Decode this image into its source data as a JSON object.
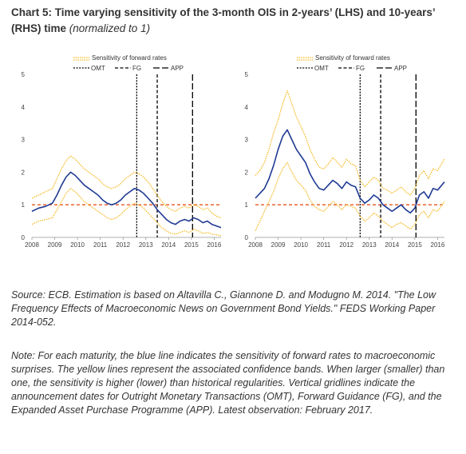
{
  "header": {
    "title_bold": "Chart 5: Time varying sensitivity of the 3-month OIS in 2-years’ (LHS) and 10-years’ (RHS) time",
    "title_italic": "(normalized to 1)"
  },
  "source_text": "Source: ECB. Estimation is based on Altavilla C., Giannone D. and Modugno M. 2014. \"The Low Frequency Effects of Macroeconomic News on Government Bond Yields.\" FEDS Working Paper 2014-052.",
  "note_text": "Note: For each maturity, the blue line indicates the sensitivity of forward rates to macroeconomic surprises. The yellow lines represent the associated confidence bands. When larger (smaller) than one, the sensitivity is higher (lower) than historical regularities. Vertical gridlines indicate the announcement dates for Outright Monetary Transactions (OMT), Forward Guidance (FG), and the Expanded Asset Purchase Programme (APP). Latest observation: February 2017.",
  "colors": {
    "sensitivity": "#1f3a93",
    "bands": "#f5b71a",
    "baseline": "#e8541c",
    "events": "#000000",
    "axis": "#999999"
  },
  "chart_data": [
    {
      "type": "line",
      "panel": "LHS",
      "legend": [
        "Sensitivity of forward rates",
        "OMT",
        "FG",
        "APP"
      ],
      "legend_placement": "top-center",
      "ylim": [
        0,
        5
      ],
      "yticks": [
        0,
        1,
        2,
        3,
        4,
        5
      ],
      "xlim": [
        2008,
        2016.3
      ],
      "xticks": [
        2008,
        2009,
        2010,
        2011,
        2012,
        2013,
        2014,
        2015,
        2016
      ],
      "grid": false,
      "baseline": 1,
      "events": [
        {
          "name": "OMT",
          "x": 2012.6,
          "style": "dotted"
        },
        {
          "name": "FG",
          "x": 2013.5,
          "style": "dashed"
        },
        {
          "name": "APP",
          "x": 2015.05,
          "style": "longdash"
        }
      ],
      "series": [
        {
          "name": "Sensitivity of forward rates",
          "role": "center",
          "x": [
            2008.0,
            2008.3,
            2008.6,
            2008.9,
            2009.1,
            2009.3,
            2009.5,
            2009.7,
            2009.9,
            2010.1,
            2010.3,
            2010.5,
            2010.7,
            2010.9,
            2011.1,
            2011.3,
            2011.5,
            2011.7,
            2011.9,
            2012.1,
            2012.3,
            2012.5,
            2012.7,
            2012.9,
            2013.1,
            2013.3,
            2013.5,
            2013.7,
            2013.9,
            2014.1,
            2014.3,
            2014.5,
            2014.7,
            2014.9,
            2015.1,
            2015.3,
            2015.5,
            2015.7,
            2015.9,
            2016.1,
            2016.3
          ],
          "y": [
            0.8,
            0.9,
            0.95,
            1.05,
            1.3,
            1.6,
            1.85,
            2.0,
            1.9,
            1.75,
            1.6,
            1.5,
            1.4,
            1.3,
            1.15,
            1.05,
            1.0,
            1.05,
            1.15,
            1.3,
            1.4,
            1.5,
            1.45,
            1.35,
            1.2,
            1.05,
            0.85,
            0.7,
            0.55,
            0.45,
            0.4,
            0.5,
            0.55,
            0.5,
            0.6,
            0.55,
            0.45,
            0.5,
            0.4,
            0.35,
            0.3
          ]
        },
        {
          "name": "Upper confidence band",
          "role": "upper",
          "x": [
            2008.0,
            2008.3,
            2008.6,
            2008.9,
            2009.1,
            2009.3,
            2009.5,
            2009.7,
            2009.9,
            2010.1,
            2010.3,
            2010.5,
            2010.7,
            2010.9,
            2011.1,
            2011.3,
            2011.5,
            2011.7,
            2011.9,
            2012.1,
            2012.3,
            2012.5,
            2012.7,
            2012.9,
            2013.1,
            2013.3,
            2013.5,
            2013.7,
            2013.9,
            2014.1,
            2014.3,
            2014.5,
            2014.7,
            2014.9,
            2015.1,
            2015.3,
            2015.5,
            2015.7,
            2015.9,
            2016.1,
            2016.3
          ],
          "y": [
            1.2,
            1.3,
            1.4,
            1.5,
            1.8,
            2.1,
            2.35,
            2.5,
            2.4,
            2.25,
            2.1,
            2.0,
            1.9,
            1.8,
            1.65,
            1.55,
            1.5,
            1.55,
            1.65,
            1.8,
            1.9,
            2.0,
            1.95,
            1.85,
            1.7,
            1.5,
            1.3,
            1.1,
            0.95,
            0.85,
            0.8,
            0.9,
            0.95,
            0.9,
            1.0,
            0.95,
            0.85,
            0.9,
            0.75,
            0.65,
            0.6
          ]
        },
        {
          "name": "Lower confidence band",
          "role": "lower",
          "x": [
            2008.0,
            2008.3,
            2008.6,
            2008.9,
            2009.1,
            2009.3,
            2009.5,
            2009.7,
            2009.9,
            2010.1,
            2010.3,
            2010.5,
            2010.7,
            2010.9,
            2011.1,
            2011.3,
            2011.5,
            2011.7,
            2011.9,
            2012.1,
            2012.3,
            2012.5,
            2012.7,
            2012.9,
            2013.1,
            2013.3,
            2013.5,
            2013.7,
            2013.9,
            2014.1,
            2014.3,
            2014.5,
            2014.7,
            2014.9,
            2015.1,
            2015.3,
            2015.5,
            2015.7,
            2015.9,
            2016.1,
            2016.3
          ],
          "y": [
            0.4,
            0.5,
            0.55,
            0.6,
            0.85,
            1.1,
            1.35,
            1.5,
            1.4,
            1.25,
            1.1,
            1.0,
            0.9,
            0.8,
            0.7,
            0.6,
            0.55,
            0.6,
            0.7,
            0.85,
            0.95,
            1.05,
            1.0,
            0.9,
            0.75,
            0.6,
            0.45,
            0.3,
            0.2,
            0.12,
            0.1,
            0.15,
            0.2,
            0.15,
            0.25,
            0.2,
            0.12,
            0.15,
            0.1,
            0.08,
            0.05
          ]
        }
      ]
    },
    {
      "type": "line",
      "panel": "RHS",
      "legend": [
        "Sensitivity of forward rates",
        "OMT",
        "FG",
        "APP"
      ],
      "legend_placement": "top-center",
      "ylim": [
        0,
        5
      ],
      "yticks": [
        0,
        1,
        2,
        3,
        4,
        5
      ],
      "xlim": [
        2008,
        2016.3
      ],
      "xticks": [
        2008,
        2009,
        2010,
        2011,
        2012,
        2013,
        2014,
        2015,
        2016
      ],
      "grid": false,
      "baseline": 1,
      "events": [
        {
          "name": "OMT",
          "x": 2012.6,
          "style": "dotted"
        },
        {
          "name": "FG",
          "x": 2013.5,
          "style": "dashed"
        },
        {
          "name": "APP",
          "x": 2015.05,
          "style": "longdash"
        }
      ],
      "series": [
        {
          "name": "Sensitivity of forward rates",
          "role": "center",
          "x": [
            2008.0,
            2008.2,
            2008.4,
            2008.6,
            2008.8,
            2009.0,
            2009.2,
            2009.4,
            2009.6,
            2009.8,
            2010.0,
            2010.2,
            2010.4,
            2010.6,
            2010.8,
            2011.0,
            2011.2,
            2011.4,
            2011.6,
            2011.8,
            2012.0,
            2012.2,
            2012.4,
            2012.6,
            2012.8,
            2013.0,
            2013.2,
            2013.4,
            2013.6,
            2013.8,
            2014.0,
            2014.2,
            2014.4,
            2014.6,
            2014.8,
            2015.0,
            2015.2,
            2015.4,
            2015.6,
            2015.8,
            2016.0,
            2016.3
          ],
          "y": [
            1.2,
            1.35,
            1.5,
            1.8,
            2.2,
            2.7,
            3.1,
            3.3,
            3.0,
            2.7,
            2.5,
            2.3,
            1.95,
            1.7,
            1.5,
            1.45,
            1.6,
            1.75,
            1.65,
            1.5,
            1.7,
            1.6,
            1.55,
            1.2,
            1.05,
            1.15,
            1.3,
            1.2,
            1.0,
            0.9,
            0.8,
            0.9,
            1.0,
            0.85,
            0.75,
            0.9,
            1.3,
            1.4,
            1.2,
            1.5,
            1.45,
            1.7
          ]
        },
        {
          "name": "Upper confidence band",
          "role": "upper",
          "x": [
            2008.0,
            2008.2,
            2008.4,
            2008.6,
            2008.8,
            2009.0,
            2009.2,
            2009.4,
            2009.6,
            2009.8,
            2010.0,
            2010.2,
            2010.4,
            2010.6,
            2010.8,
            2011.0,
            2011.2,
            2011.4,
            2011.6,
            2011.8,
            2012.0,
            2012.2,
            2012.4,
            2012.6,
            2012.8,
            2013.0,
            2013.2,
            2013.4,
            2013.6,
            2013.8,
            2014.0,
            2014.2,
            2014.4,
            2014.6,
            2014.8,
            2015.0,
            2015.2,
            2015.4,
            2015.6,
            2015.8,
            2016.0,
            2016.3
          ],
          "y": [
            1.9,
            2.05,
            2.3,
            2.7,
            3.2,
            3.6,
            4.1,
            4.5,
            4.1,
            3.7,
            3.4,
            3.1,
            2.7,
            2.4,
            2.15,
            2.1,
            2.25,
            2.45,
            2.3,
            2.15,
            2.4,
            2.25,
            2.2,
            1.75,
            1.55,
            1.7,
            1.85,
            1.75,
            1.5,
            1.45,
            1.35,
            1.45,
            1.55,
            1.4,
            1.3,
            1.5,
            1.9,
            2.05,
            1.8,
            2.1,
            2.05,
            2.4
          ]
        },
        {
          "name": "Lower confidence band",
          "role": "lower",
          "x": [
            2008.0,
            2008.2,
            2008.4,
            2008.6,
            2008.8,
            2009.0,
            2009.2,
            2009.4,
            2009.6,
            2009.8,
            2010.0,
            2010.2,
            2010.4,
            2010.6,
            2010.8,
            2011.0,
            2011.2,
            2011.4,
            2011.6,
            2011.8,
            2012.0,
            2012.2,
            2012.4,
            2012.6,
            2012.8,
            2013.0,
            2013.2,
            2013.4,
            2013.6,
            2013.8,
            2014.0,
            2014.2,
            2014.4,
            2014.6,
            2014.8,
            2015.0,
            2015.2,
            2015.4,
            2015.6,
            2015.8,
            2016.0,
            2016.3
          ],
          "y": [
            0.2,
            0.5,
            0.8,
            1.1,
            1.4,
            1.8,
            2.1,
            2.3,
            2.0,
            1.75,
            1.6,
            1.45,
            1.15,
            0.95,
            0.85,
            0.8,
            0.95,
            1.1,
            1.0,
            0.85,
            1.0,
            0.95,
            0.9,
            0.65,
            0.5,
            0.6,
            0.75,
            0.65,
            0.5,
            0.4,
            0.3,
            0.4,
            0.45,
            0.35,
            0.25,
            0.4,
            0.7,
            0.8,
            0.6,
            0.85,
            0.8,
            1.1
          ]
        }
      ]
    }
  ]
}
